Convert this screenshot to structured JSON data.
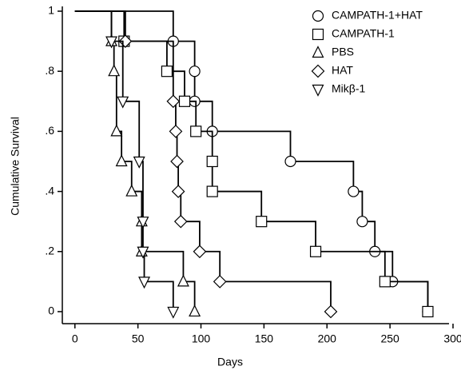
{
  "chart_data": {
    "type": "step",
    "x_label": "Days",
    "y_label": "Cumulative Survival",
    "xlim": [
      -10,
      300
    ],
    "ylim": [
      -0.04,
      1
    ],
    "xticks": [
      0,
      50,
      100,
      150,
      200,
      250,
      300
    ],
    "yticks": [
      0,
      {
        "value": 0.2,
        "label": ".2"
      },
      {
        "value": 0.4,
        "label": ".4"
      },
      {
        "value": 0.6,
        "label": ".6"
      },
      {
        "value": 0.8,
        "label": ".8"
      },
      1
    ],
    "legend": "upper right",
    "series": [
      {
        "name": "CAMPATH-1+HAT",
        "color": "#000000",
        "marker": "circle",
        "x": [
          0,
          78,
          95,
          95,
          109,
          171,
          221,
          228,
          238,
          252,
          280
        ],
        "values": [
          1,
          0.9,
          0.8,
          0.7,
          0.6,
          0.5,
          0.4,
          0.3,
          0.2,
          0.1,
          0
        ]
      },
      {
        "name": "CAMPATH-1",
        "color": "#000000",
        "marker": "square",
        "x": [
          0,
          39,
          73,
          87,
          96,
          109,
          109,
          148,
          191,
          246,
          280
        ],
        "values": [
          1,
          0.9,
          0.8,
          0.7,
          0.6,
          0.5,
          0.4,
          0.3,
          0.2,
          0.1,
          0
        ]
      },
      {
        "name": "PBS",
        "color": "#000000",
        "marker": "triangle",
        "x": [
          0,
          29,
          31,
          33,
          37,
          45,
          53,
          53,
          86,
          95
        ],
        "values": [
          1,
          0.9,
          0.8,
          0.6,
          0.5,
          0.4,
          0.3,
          0.2,
          0.1,
          0
        ]
      },
      {
        "name": "HAT",
        "color": "#000000",
        "marker": "diamond",
        "x": [
          0,
          40,
          78,
          80,
          81,
          82,
          84,
          99,
          115,
          203
        ],
        "values": [
          1,
          0.9,
          0.7,
          0.6,
          0.5,
          0.4,
          0.3,
          0.2,
          0.1,
          0
        ]
      },
      {
        "name": "Mikβ-1",
        "color": "#000000",
        "marker": "triangle-down",
        "x": [
          0,
          29,
          38,
          51,
          54,
          54,
          55,
          78
        ],
        "values": [
          1,
          0.9,
          0.7,
          0.5,
          0.3,
          0.2,
          0.1,
          0
        ]
      }
    ]
  }
}
